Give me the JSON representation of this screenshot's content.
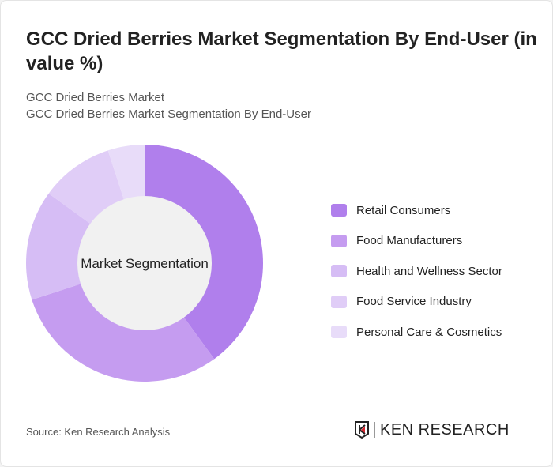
{
  "title": "GCC Dried Berries Market Segmentation By End-User (in value %)",
  "subtitle_1": "GCC Dried Berries Market",
  "subtitle_2": "GCC Dried Berries Market Segmentation By End-User",
  "chart_data": {
    "type": "pie",
    "variant": "donut",
    "center_label": "Market Segmentation",
    "legend_position": "right",
    "categories": [
      "Retail Consumers",
      "Food Manufacturers",
      "Health and Wellness Sector",
      "Food Service Industry",
      "Personal Care & Cosmetics"
    ],
    "values": [
      40,
      30,
      15,
      10,
      5
    ],
    "colors": [
      "#b07fec",
      "#c59cf0",
      "#d6bdf5",
      "#e0cdf7",
      "#e8dcf9"
    ]
  },
  "source": "Source: Ken Research Analysis",
  "logo": "KEN RESEARCH"
}
